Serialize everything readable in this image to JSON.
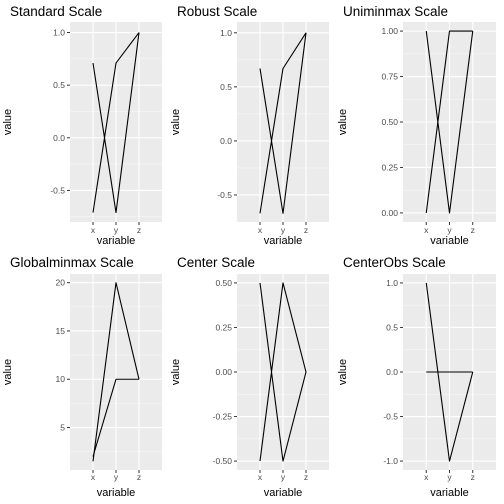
{
  "colors": {
    "panel_background": "#ebebeb",
    "grid_major": "#ffffff",
    "grid_minor": "#f5f5f5",
    "line": "#000000",
    "tick_text": "#4d4d4d",
    "tick_mark": "#333333"
  },
  "chart_data": [
    {
      "type": "line",
      "title": "Standard Scale",
      "xlabel": "variable",
      "ylabel": "value",
      "categories": [
        "x",
        "y",
        "z"
      ],
      "ylim": [
        -0.8,
        1.1
      ],
      "yticks": [
        -0.5,
        0.0,
        0.5,
        1.0
      ],
      "ytick_labels": [
        "-0.5",
        "0.0",
        "0.5",
        "1.0"
      ],
      "grid": true,
      "series": [
        {
          "values": [
            0.71,
            -0.71,
            1.0
          ]
        },
        {
          "values": [
            -0.71,
            0.71,
            1.0
          ]
        }
      ]
    },
    {
      "type": "line",
      "title": "Robust Scale",
      "xlabel": "variable",
      "ylabel": "value",
      "categories": [
        "x",
        "y",
        "z"
      ],
      "ylim": [
        -0.75,
        1.1
      ],
      "yticks": [
        -0.5,
        0.0,
        0.5,
        1.0
      ],
      "ytick_labels": [
        "-0.5",
        "0.0",
        "0.5",
        "1.0"
      ],
      "grid": true,
      "series": [
        {
          "values": [
            0.67,
            -0.67,
            1.0
          ]
        },
        {
          "values": [
            -0.67,
            0.67,
            1.0
          ]
        }
      ]
    },
    {
      "type": "line",
      "title": "Uniminmax Scale",
      "xlabel": "variable",
      "ylabel": "value",
      "categories": [
        "x",
        "y",
        "z"
      ],
      "ylim": [
        -0.05,
        1.05
      ],
      "yticks": [
        0.0,
        0.25,
        0.5,
        0.75,
        1.0
      ],
      "ytick_labels": [
        "0.00",
        "0.25",
        "0.50",
        "0.75",
        "1.00"
      ],
      "grid": true,
      "series": [
        {
          "values": [
            1.0,
            0.0,
            1.0
          ]
        },
        {
          "values": [
            0.0,
            1.0,
            1.0
          ]
        }
      ]
    },
    {
      "type": "line",
      "title": "Globalminmax Scale",
      "xlabel": "variable",
      "ylabel": "value",
      "categories": [
        "x",
        "y",
        "z"
      ],
      "ylim": [
        0.6,
        20.9
      ],
      "yticks": [
        5,
        10,
        15,
        20
      ],
      "ytick_labels": [
        "5",
        "10",
        "15",
        "20"
      ],
      "grid": true,
      "series": [
        {
          "values": [
            1.5,
            20,
            10
          ]
        },
        {
          "values": [
            2.0,
            10,
            10
          ]
        }
      ]
    },
    {
      "type": "line",
      "title": "Center Scale",
      "xlabel": "variable",
      "ylabel": "value",
      "categories": [
        "x",
        "y",
        "z"
      ],
      "ylim": [
        -0.55,
        0.55
      ],
      "yticks": [
        -0.5,
        -0.25,
        0.0,
        0.25,
        0.5
      ],
      "ytick_labels": [
        "-0.50",
        "-0.25",
        "0.00",
        "0.25",
        "0.50"
      ],
      "grid": true,
      "series": [
        {
          "values": [
            0.5,
            -0.5,
            0.0
          ]
        },
        {
          "values": [
            -0.5,
            0.5,
            0.0
          ]
        }
      ]
    },
    {
      "type": "line",
      "title": "CenterObs Scale",
      "xlabel": "variable",
      "ylabel": "value",
      "categories": [
        "x",
        "y",
        "z"
      ],
      "ylim": [
        -1.1,
        1.1
      ],
      "yticks": [
        -1.0,
        -0.5,
        0.0,
        0.5,
        1.0
      ],
      "ytick_labels": [
        "-1.0",
        "-0.5",
        "0.0",
        "0.5",
        "1.0"
      ],
      "grid": true,
      "series": [
        {
          "values": [
            1.0,
            -1.0,
            0.0
          ]
        },
        {
          "values": [
            0.0,
            0.0,
            0.0
          ]
        }
      ]
    }
  ]
}
